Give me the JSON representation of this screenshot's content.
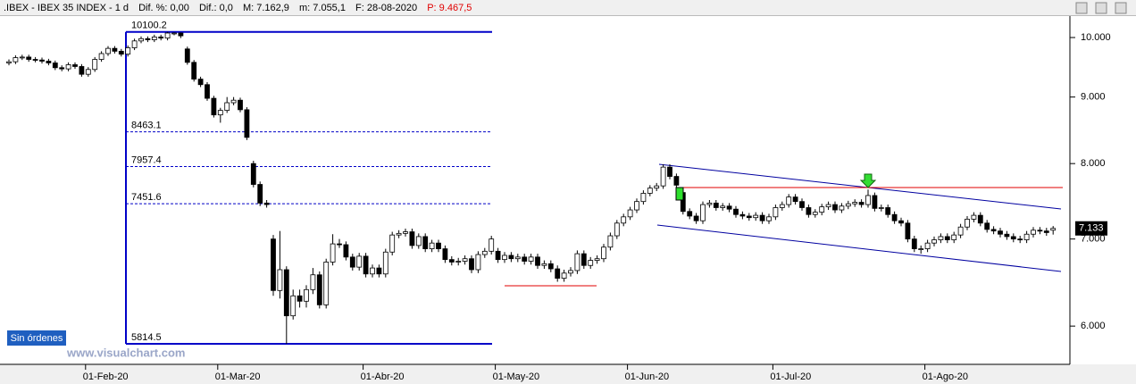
{
  "header": [
    ".IBEX - IBEX 35 INDEX - 1 d",
    "Dif. %: 0,00",
    "Dif.: 0,0",
    "M: 7.162,9",
    "m: 7.055,1",
    "F: 28-08-2020",
    "P: 9.467,5"
  ],
  "button": "Sin órdenes",
  "watermark": "www.visualchart.com",
  "chart_data": {
    "type": "candlestick",
    "categories": [
      null,
      null,
      null,
      null,
      null,
      null,
      null,
      null,
      null,
      null,
      null,
      null,
      "01-Feb-20",
      null,
      null,
      null,
      null,
      null,
      null,
      null,
      null,
      null,
      null,
      null,
      null,
      null,
      null,
      null,
      null,
      null,
      null,
      null,
      "01-Mar-20",
      null,
      null,
      null,
      null,
      null,
      null,
      null,
      null,
      null,
      null,
      null,
      null,
      null,
      null,
      null,
      null,
      null,
      null,
      null,
      null,
      null,
      "01-Abr-20",
      null,
      null,
      null,
      null,
      null,
      null,
      null,
      null,
      null,
      null,
      null,
      null,
      null,
      null,
      null,
      null,
      null,
      null,
      null,
      "01-May-20",
      null,
      null,
      null,
      null,
      null,
      null,
      null,
      null,
      null,
      null,
      null,
      null,
      null,
      null,
      null,
      null,
      null,
      null,
      null,
      "01-Jun-20",
      null,
      null,
      null,
      null,
      null,
      null,
      null,
      null,
      null,
      null,
      null,
      null,
      null,
      null,
      null,
      null,
      null,
      null,
      null,
      null,
      null,
      "01-Jul-20",
      null,
      null,
      null,
      null,
      null,
      null,
      null,
      null,
      null,
      null,
      null,
      null,
      null,
      null,
      null,
      null,
      null,
      null,
      null,
      null,
      null,
      null,
      "01-Ago-20",
      null,
      null,
      null,
      null,
      null,
      null,
      null,
      null,
      null,
      null,
      null,
      null,
      null,
      null,
      null,
      null,
      null,
      null,
      null
    ],
    "open": [
      9560,
      9580,
      9650,
      9660,
      9620,
      9610,
      9590,
      9560,
      9480,
      9460,
      9530,
      9500,
      9370,
      9450,
      9620,
      9720,
      9810,
      9760,
      9710,
      9820,
      9940,
      9980,
      9960,
      10010,
      9990,
      10080,
      10080,
      9800,
      9570,
      9290,
      9200,
      8980,
      8720,
      8790,
      8910,
      8950,
      8800,
      8000,
      7710,
      7460,
      7000,
      6390,
      6630,
      6110,
      6330,
      6270,
      6400,
      6570,
      6230,
      6720,
      6940,
      6930,
      6780,
      6660,
      6790,
      6580,
      6650,
      6580,
      6840,
      7050,
      7070,
      7090,
      6920,
      7030,
      6880,
      6950,
      6880,
      6750,
      6720,
      6730,
      6760,
      6630,
      6810,
      6850,
      6850,
      6750,
      6800,
      6760,
      6780,
      6730,
      6780,
      6680,
      6700,
      6640,
      6530,
      6590,
      6620,
      6820,
      6680,
      6740,
      6760,
      6900,
      7040,
      7200,
      7280,
      7370,
      7480,
      7590,
      7660,
      7690,
      7950,
      7820,
      7600,
      7350,
      7290,
      7230,
      7440,
      7460,
      7400,
      7420,
      7380,
      7310,
      7290,
      7270,
      7300,
      7230,
      7280,
      7400,
      7440,
      7540,
      7480,
      7400,
      7310,
      7340,
      7410,
      7440,
      7370,
      7420,
      7450,
      7470,
      7440,
      7560,
      7390,
      7400,
      7310,
      7230,
      7200,
      7000,
      6880,
      6880,
      6950,
      6990,
      7030,
      6990,
      7050,
      7150,
      7250,
      7300,
      7200,
      7120,
      7100,
      7060,
      7030,
      7000,
      6990,
      7060,
      7110,
      7100,
      7110
    ],
    "high": [
      9620,
      9690,
      9700,
      9700,
      9660,
      9650,
      9630,
      9600,
      9520,
      9570,
      9570,
      9540,
      9490,
      9660,
      9760,
      9850,
      9850,
      9800,
      9860,
      9980,
      10020,
      10020,
      10050,
      10050,
      10100.2,
      10090,
      10090,
      9840,
      9610,
      9330,
      9240,
      9020,
      8830,
      9000,
      9000,
      8990,
      8840,
      8040,
      7750,
      7500,
      7050,
      7100,
      6670,
      6400,
      6400,
      6450,
      6650,
      6610,
      6760,
      7060,
      7000,
      6970,
      6820,
      6830,
      6830,
      6690,
      6690,
      6880,
      7090,
      7110,
      7130,
      7130,
      7070,
      7070,
      6990,
      6990,
      6920,
      6790,
      6770,
      6800,
      6800,
      6850,
      6890,
      7040,
      6890,
      6840,
      6840,
      6820,
      6820,
      6820,
      6820,
      6740,
      6740,
      6680,
      6630,
      6660,
      6860,
      6860,
      6780,
      6800,
      6940,
      7080,
      7240,
      7320,
      7410,
      7520,
      7630,
      7700,
      7730,
      7990,
      7990,
      7860,
      7640,
      7390,
      7330,
      7480,
      7500,
      7500,
      7460,
      7460,
      7420,
      7350,
      7330,
      7340,
      7340,
      7320,
      7440,
      7480,
      7580,
      7580,
      7520,
      7440,
      7380,
      7450,
      7480,
      7480,
      7460,
      7490,
      7510,
      7510,
      7640,
      7600,
      7440,
      7440,
      7350,
      7270,
      7240,
      7040,
      6920,
      6990,
      7030,
      7070,
      7070,
      7090,
      7190,
      7290,
      7340,
      7340,
      7240,
      7160,
      7140,
      7100,
      7070,
      7040,
      7100,
      7150,
      7150,
      7140,
      7162.9
    ],
    "low": [
      9520,
      9540,
      9610,
      9580,
      9570,
      9550,
      9520,
      9440,
      9420,
      9420,
      9460,
      9330,
      9330,
      9410,
      9580,
      9680,
      9720,
      9670,
      9670,
      9780,
      9900,
      9920,
      9920,
      9950,
      9950,
      10040,
      9990,
      9530,
      9250,
      9160,
      8940,
      8680,
      8600,
      8750,
      8870,
      8760,
      8340,
      7670,
      7420,
      7400,
      6330,
      6300,
      5814.5,
      6070,
      6200,
      6200,
      6350,
      6190,
      6190,
      6680,
      6890,
      6740,
      6620,
      6620,
      6540,
      6540,
      6540,
      6540,
      6800,
      7010,
      7030,
      6880,
      6880,
      6840,
      6840,
      6840,
      6710,
      6680,
      6680,
      6690,
      6590,
      6590,
      6770,
      6810,
      6710,
      6710,
      6720,
      6720,
      6690,
      6690,
      6640,
      6640,
      6600,
      6490,
      6490,
      6550,
      6580,
      6640,
      6640,
      6700,
      6720,
      6860,
      7000,
      7160,
      7240,
      7330,
      7440,
      7550,
      7620,
      7650,
      7780,
      7660,
      7310,
      7250,
      7190,
      7190,
      7400,
      7360,
      7360,
      7340,
      7270,
      7250,
      7230,
      7230,
      7190,
      7190,
      7240,
      7360,
      7400,
      7440,
      7360,
      7270,
      7270,
      7300,
      7370,
      7330,
      7330,
      7380,
      7410,
      7400,
      7400,
      7350,
      7350,
      7270,
      7190,
      7160,
      6960,
      6840,
      6820,
      6840,
      6910,
      6950,
      6950,
      6950,
      7010,
      7110,
      7210,
      7160,
      7080,
      7060,
      7020,
      6990,
      6960,
      6950,
      6950,
      7020,
      7060,
      7040,
      7055.1
    ],
    "close": [
      9580,
      9650,
      9660,
      9620,
      9610,
      9590,
      9560,
      9480,
      9460,
      9530,
      9500,
      9370,
      9450,
      9620,
      9720,
      9810,
      9760,
      9710,
      9820,
      9940,
      9980,
      9960,
      10010,
      9990,
      10080,
      10080,
      10030,
      9570,
      9290,
      9200,
      8980,
      8720,
      8790,
      8910,
      8950,
      8800,
      8380,
      7710,
      7460,
      7440,
      6390,
      6630,
      6110,
      6330,
      6270,
      6400,
      6570,
      6230,
      6720,
      6940,
      6930,
      6780,
      6660,
      6790,
      6580,
      6650,
      6580,
      6840,
      7050,
      7070,
      7090,
      6920,
      7030,
      6880,
      6950,
      6880,
      6750,
      6720,
      6730,
      6760,
      6630,
      6810,
      6850,
      7000,
      6750,
      6800,
      6760,
      6780,
      6730,
      6780,
      6680,
      6700,
      6640,
      6530,
      6590,
      6620,
      6820,
      6680,
      6740,
      6760,
      6900,
      7040,
      7200,
      7280,
      7370,
      7480,
      7590,
      7660,
      7690,
      7950,
      7820,
      7700,
      7350,
      7290,
      7230,
      7440,
      7460,
      7400,
      7420,
      7380,
      7310,
      7290,
      7270,
      7300,
      7230,
      7280,
      7400,
      7440,
      7540,
      7480,
      7400,
      7310,
      7340,
      7410,
      7440,
      7370,
      7420,
      7450,
      7470,
      7440,
      7560,
      7390,
      7400,
      7310,
      7230,
      7200,
      7000,
      6880,
      6880,
      6950,
      6990,
      7030,
      6990,
      7050,
      7150,
      7250,
      7300,
      7200,
      7120,
      7100,
      7060,
      7030,
      7000,
      6990,
      7060,
      7110,
      7100,
      7080,
      7133
    ],
    "up_color": "#ffffff",
    "down_color": "#000000",
    "log_scale": true,
    "ylim": [
      5607,
      10387
    ],
    "yticks": [
      {
        "value": 10000,
        "label": "10.000"
      },
      {
        "value": 9000,
        "label": "9.000"
      },
      {
        "value": 8000,
        "label": "8.000"
      },
      {
        "value": 7000,
        "label": "7.000"
      },
      {
        "value": 6000,
        "label": "6.000"
      }
    ],
    "last_price": {
      "value": 7133,
      "label": "7.133"
    },
    "fib_levels": [
      10100.2,
      8463.1,
      7957.4,
      7451.6,
      5814.5
    ],
    "fib_color": "#0000c8"
  }
}
